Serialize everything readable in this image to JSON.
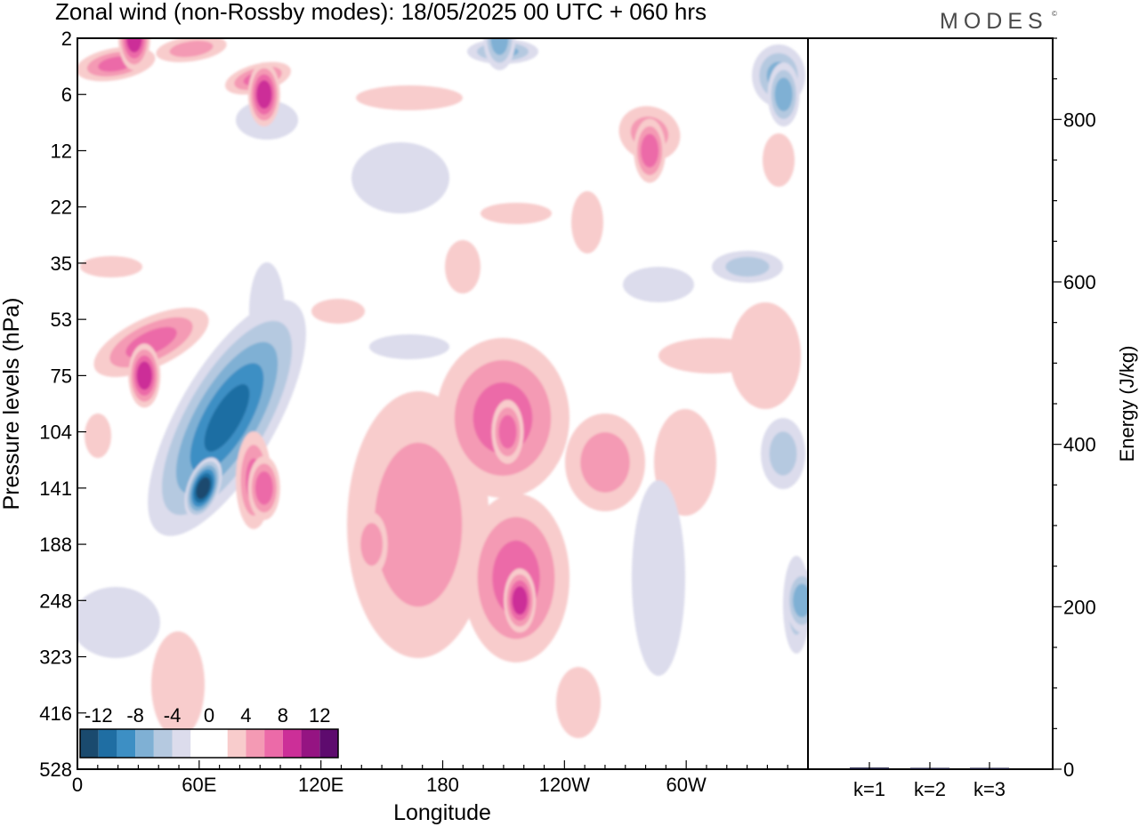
{
  "title": "Zonal wind (non-Rossby modes):  18/05/2025  00 UTC  + 060 hrs",
  "brand": "MODES",
  "brand_mark": "©",
  "chart_data": [
    {
      "type": "heatmap",
      "title": "Zonal wind (non-Rossby modes):  18/05/2025  00 UTC  + 060 hrs",
      "xlabel": "Longitude",
      "ylabel": "Pressure levels (hPa)",
      "x_ticks": [
        "0",
        "60E",
        "120E",
        "180",
        "120W",
        "60W"
      ],
      "x_tick_values": [
        0,
        60,
        120,
        180,
        240,
        300
      ],
      "xlim": [
        0,
        360
      ],
      "y_ticks": [
        "2",
        "6",
        "12",
        "22",
        "35",
        "53",
        "75",
        "104",
        "141",
        "188",
        "248",
        "323",
        "416",
        "528"
      ],
      "y_scale": "pressure levels (top 2 hPa, bottom 528 hPa)",
      "colorbar": {
        "labels": [
          "-12",
          "-8",
          "-4",
          "0",
          "4",
          "8",
          "12"
        ],
        "colors": [
          "#1a4a6e",
          "#1f6ea3",
          "#3d8fc4",
          "#7fb0d4",
          "#b5c9e0",
          "#dcdcec",
          "#ffffff",
          "#ffffff",
          "#f8cccc",
          "#f49ab4",
          "#ec6aa8",
          "#cc2f98",
          "#951482",
          "#5e0b6e"
        ]
      },
      "features": [
        {
          "sign": "negative",
          "lon": 62,
          "level_hPa": 141,
          "value": -12
        },
        {
          "sign": "positive",
          "lon": 33,
          "level_hPa": 75,
          "value": 8
        },
        {
          "sign": "positive",
          "lon": 218,
          "level_hPa": 248,
          "value": 8
        },
        {
          "sign": "positive",
          "lon": 212,
          "level_hPa": 104,
          "value": 6
        },
        {
          "sign": "positive",
          "lon": 92,
          "level_hPa": 141,
          "value": 6
        },
        {
          "sign": "positive",
          "lon": 28,
          "level_hPa": 2,
          "value": 8
        },
        {
          "sign": "positive",
          "lon": 92,
          "level_hPa": 6,
          "value": 8
        },
        {
          "sign": "negative",
          "lon": 208,
          "level_hPa": 2,
          "value": -6
        },
        {
          "sign": "negative",
          "lon": 348,
          "level_hPa": 6,
          "value": -6
        },
        {
          "sign": "positive",
          "lon": 282,
          "level_hPa": 12,
          "value": 6
        },
        {
          "sign": "positive",
          "lon": 145,
          "level_hPa": 188,
          "value": 4
        },
        {
          "sign": "negative",
          "lon": 357,
          "level_hPa": 248,
          "value": -6
        }
      ]
    },
    {
      "type": "bar",
      "ylabel": "Energy (J/kg)",
      "ylim": [
        0,
        900
      ],
      "y_ticks": [
        "0",
        "200",
        "400",
        "600",
        "800"
      ],
      "categories": [
        "k=1",
        "k=2",
        "k=3"
      ],
      "values": [
        2,
        1,
        1
      ]
    }
  ]
}
